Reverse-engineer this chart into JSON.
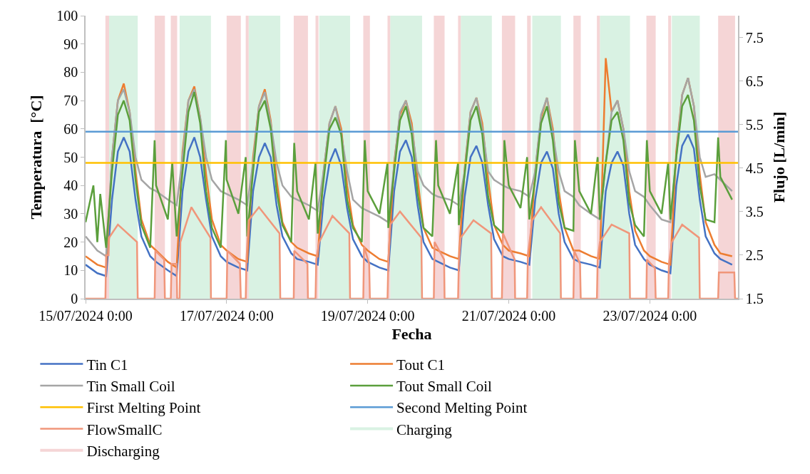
{
  "chart_data": {
    "type": "line",
    "xlabel": "Fecha",
    "ylabel": "Temperatura  [°C]",
    "y2label": "Flujo [L/min]",
    "xlim": [
      "2024-07-15T00:00",
      "2024-07-24T06:00"
    ],
    "xticks": [
      {
        "value": "2024-07-15T00:00",
        "label": "15/07/2024 0:00"
      },
      {
        "value": "2024-07-17T00:00",
        "label": "17/07/2024 0:00"
      },
      {
        "value": "2024-07-19T00:00",
        "label": "19/07/2024 0:00"
      },
      {
        "value": "2024-07-21T00:00",
        "label": "21/07/2024 0:00"
      },
      {
        "value": "2024-07-23T00:00",
        "label": "23/07/2024 0:00"
      }
    ],
    "ylim": [
      0,
      100
    ],
    "yticks": [
      0,
      10,
      20,
      30,
      40,
      50,
      60,
      70,
      80,
      90,
      100
    ],
    "y2lim": [
      1.5,
      8
    ],
    "y2ticks": [
      1.5,
      2.5,
      3.5,
      4.5,
      5.5,
      6.5,
      7.5
    ],
    "legend": "bottom",
    "x": [
      "2024-07-15T00:00",
      "2024-07-15T04:00",
      "2024-07-15T07:00",
      "2024-07-15T09:00",
      "2024-07-15T11:00",
      "2024-07-15T13:00",
      "2024-07-15T15:00",
      "2024-07-15T17:00",
      "2024-07-15T19:00",
      "2024-07-15T22:00",
      "2024-07-16T00:00",
      "2024-07-16T04:00",
      "2024-07-16T07:00",
      "2024-07-16T09:00",
      "2024-07-16T11:00",
      "2024-07-16T13:00",
      "2024-07-16T15:00",
      "2024-07-16T17:00",
      "2024-07-16T19:00",
      "2024-07-16T22:00",
      "2024-07-17T00:00",
      "2024-07-17T04:00",
      "2024-07-17T07:00",
      "2024-07-17T09:00",
      "2024-07-17T11:00",
      "2024-07-17T13:00",
      "2024-07-17T15:00",
      "2024-07-17T17:00",
      "2024-07-17T19:00",
      "2024-07-17T22:00",
      "2024-07-18T00:00",
      "2024-07-18T04:00",
      "2024-07-18T07:00",
      "2024-07-18T09:00",
      "2024-07-18T11:00",
      "2024-07-18T13:00",
      "2024-07-18T15:00",
      "2024-07-18T17:00",
      "2024-07-18T19:00",
      "2024-07-18T22:00",
      "2024-07-19T00:00",
      "2024-07-19T04:00",
      "2024-07-19T07:00",
      "2024-07-19T09:00",
      "2024-07-19T11:00",
      "2024-07-19T13:00",
      "2024-07-19T15:00",
      "2024-07-19T17:00",
      "2024-07-19T19:00",
      "2024-07-19T22:00",
      "2024-07-20T00:00",
      "2024-07-20T04:00",
      "2024-07-20T07:00",
      "2024-07-20T09:00",
      "2024-07-20T11:00",
      "2024-07-20T13:00",
      "2024-07-20T15:00",
      "2024-07-20T17:00",
      "2024-07-20T19:00",
      "2024-07-20T22:00",
      "2024-07-21T00:00",
      "2024-07-21T04:00",
      "2024-07-21T07:00",
      "2024-07-21T09:00",
      "2024-07-21T11:00",
      "2024-07-21T13:00",
      "2024-07-21T15:00",
      "2024-07-21T17:00",
      "2024-07-21T19:00",
      "2024-07-21T22:00",
      "2024-07-22T00:00",
      "2024-07-22T04:00",
      "2024-07-22T07:00",
      "2024-07-22T09:00",
      "2024-07-22T11:00",
      "2024-07-22T13:00",
      "2024-07-22T15:00",
      "2024-07-22T17:00",
      "2024-07-22T19:00",
      "2024-07-22T22:00",
      "2024-07-23T00:00",
      "2024-07-23T04:00",
      "2024-07-23T07:00",
      "2024-07-23T09:00",
      "2024-07-23T11:00",
      "2024-07-23T13:00",
      "2024-07-23T15:00",
      "2024-07-23T17:00",
      "2024-07-23T19:00",
      "2024-07-23T22:00",
      "2024-07-24T00:00",
      "2024-07-24T04:00"
    ],
    "series": [
      {
        "name": "Tin C1",
        "color": "#4472c4",
        "values": [
          12,
          9,
          8,
          35,
          52,
          57,
          52,
          35,
          22,
          15,
          13,
          10,
          8,
          38,
          52,
          57,
          50,
          35,
          22,
          15,
          13,
          11,
          10,
          38,
          50,
          55,
          50,
          33,
          22,
          16,
          14,
          13,
          12,
          35,
          48,
          53,
          47,
          32,
          21,
          15,
          13,
          11,
          10,
          38,
          52,
          56,
          50,
          33,
          20,
          14,
          13,
          11,
          10,
          36,
          50,
          54,
          48,
          33,
          21,
          15,
          14,
          13,
          12,
          35,
          48,
          52,
          46,
          30,
          20,
          14,
          13,
          12,
          11,
          38,
          48,
          52,
          47,
          30,
          19,
          14,
          12,
          10,
          9,
          40,
          54,
          58,
          53,
          35,
          22,
          16,
          14,
          12
        ]
      },
      {
        "name": "Tout C1",
        "color": "#ed7d31",
        "values": [
          15,
          12,
          11,
          50,
          70,
          76,
          66,
          45,
          28,
          19,
          17,
          13,
          11,
          52,
          70,
          75,
          64,
          44,
          28,
          19,
          17,
          14,
          13,
          50,
          68,
          74,
          63,
          42,
          27,
          20,
          18,
          16,
          15,
          45,
          62,
          68,
          60,
          40,
          26,
          19,
          17,
          14,
          13,
          48,
          65,
          70,
          62,
          42,
          25,
          18,
          17,
          15,
          14,
          46,
          66,
          71,
          62,
          42,
          26,
          19,
          17,
          16,
          15,
          45,
          64,
          71,
          60,
          38,
          25,
          17,
          17,
          15,
          14,
          85,
          66,
          70,
          60,
          38,
          24,
          17,
          15,
          13,
          12,
          52,
          72,
          78,
          68,
          44,
          27,
          19,
          16,
          15
        ]
      },
      {
        "name": "Tin Small Coil",
        "color": "#a5a5a5",
        "values": [
          22,
          17,
          15,
          50,
          70,
          74,
          66,
          50,
          42,
          39,
          38,
          35,
          33,
          50,
          70,
          74,
          64,
          50,
          42,
          38,
          37,
          35,
          33,
          48,
          68,
          73,
          62,
          48,
          40,
          36,
          35,
          33,
          31,
          45,
          62,
          68,
          58,
          45,
          35,
          32,
          31,
          29,
          27,
          47,
          66,
          70,
          60,
          45,
          40,
          37,
          36,
          35,
          33,
          45,
          66,
          71,
          60,
          45,
          42,
          40,
          39,
          38,
          36,
          45,
          65,
          71,
          58,
          45,
          38,
          36,
          33,
          30,
          28,
          48,
          66,
          70,
          60,
          45,
          38,
          36,
          33,
          28,
          27,
          50,
          72,
          78,
          68,
          50,
          43,
          44,
          42,
          38
        ]
      },
      {
        "name": "Tout Small Coil",
        "color": "#5b9f3c",
        "x": [
          "2024-07-15T00:00",
          "2024-07-15T02:40",
          "2024-07-15T04:00",
          "2024-07-15T05:00",
          "2024-07-15T07:00",
          "2024-07-15T09:00",
          "2024-07-15T11:00",
          "2024-07-15T13:00",
          "2024-07-15T15:00",
          "2024-07-15T17:00",
          "2024-07-15T19:00",
          "2024-07-15T22:00",
          "2024-07-15T23:30",
          "2024-07-16T00:00",
          "2024-07-16T04:00",
          "2024-07-16T05:30",
          "2024-07-16T07:00",
          "2024-07-16T09:00",
          "2024-07-16T11:00",
          "2024-07-16T13:00",
          "2024-07-16T15:00",
          "2024-07-16T17:00",
          "2024-07-16T19:00",
          "2024-07-16T22:00",
          "2024-07-16T23:45",
          "2024-07-17T00:00",
          "2024-07-17T04:00",
          "2024-07-17T06:30",
          "2024-07-17T07:00",
          "2024-07-17T09:00",
          "2024-07-17T11:00",
          "2024-07-17T13:00",
          "2024-07-17T15:00",
          "2024-07-17T17:00",
          "2024-07-17T19:00",
          "2024-07-17T22:00",
          "2024-07-17T23:00",
          "2024-07-18T00:00",
          "2024-07-18T04:00",
          "2024-07-18T06:15",
          "2024-07-18T07:00",
          "2024-07-18T09:00",
          "2024-07-18T11:00",
          "2024-07-18T13:00",
          "2024-07-18T15:00",
          "2024-07-18T17:00",
          "2024-07-18T19:00",
          "2024-07-18T22:00",
          "2024-07-18T23:00",
          "2024-07-19T00:00",
          "2024-07-19T04:00",
          "2024-07-19T06:45",
          "2024-07-19T07:00",
          "2024-07-19T09:00",
          "2024-07-19T11:00",
          "2024-07-19T13:00",
          "2024-07-19T15:00",
          "2024-07-19T17:00",
          "2024-07-19T19:00",
          "2024-07-19T22:00",
          "2024-07-19T23:15",
          "2024-07-20T00:00",
          "2024-07-20T04:00",
          "2024-07-20T06:45",
          "2024-07-20T07:00",
          "2024-07-20T09:00",
          "2024-07-20T11:00",
          "2024-07-20T13:00",
          "2024-07-20T15:00",
          "2024-07-20T17:00",
          "2024-07-20T19:00",
          "2024-07-20T22:00",
          "2024-07-20T22:30",
          "2024-07-21T00:00",
          "2024-07-21T04:00",
          "2024-07-21T06:15",
          "2024-07-21T07:00",
          "2024-07-21T09:00",
          "2024-07-21T11:00",
          "2024-07-21T13:00",
          "2024-07-21T15:00",
          "2024-07-21T17:00",
          "2024-07-21T19:00",
          "2024-07-21T22:00",
          "2024-07-21T22:30",
          "2024-07-22T00:00",
          "2024-07-22T04:00",
          "2024-07-22T06:15",
          "2024-07-22T07:00",
          "2024-07-22T09:00",
          "2024-07-22T11:00",
          "2024-07-22T13:00",
          "2024-07-22T15:00",
          "2024-07-22T17:00",
          "2024-07-22T19:00",
          "2024-07-22T22:00",
          "2024-07-22T23:00",
          "2024-07-23T00:00",
          "2024-07-23T04:00",
          "2024-07-23T06:15",
          "2024-07-23T07:00",
          "2024-07-23T09:00",
          "2024-07-23T11:00",
          "2024-07-23T13:00",
          "2024-07-23T15:00",
          "2024-07-23T17:00",
          "2024-07-23T19:00",
          "2024-07-23T22:00",
          "2024-07-23T23:15",
          "2024-07-24T00:00",
          "2024-07-24T04:00"
        ],
        "values": [
          27,
          40,
          20,
          37,
          18,
          45,
          65,
          70,
          63,
          42,
          26,
          18,
          56,
          40,
          28,
          48,
          22,
          45,
          66,
          73,
          62,
          38,
          25,
          18,
          56,
          42,
          30,
          50,
          22,
          45,
          66,
          70,
          60,
          38,
          26,
          20,
          55,
          38,
          28,
          48,
          23,
          42,
          60,
          64,
          58,
          35,
          25,
          20,
          56,
          38,
          30,
          48,
          25,
          45,
          63,
          68,
          58,
          37,
          25,
          22,
          56,
          40,
          30,
          48,
          26,
          44,
          63,
          68,
          58,
          36,
          26,
          23,
          56,
          40,
          32,
          50,
          28,
          42,
          62,
          68,
          56,
          34,
          25,
          24,
          56,
          38,
          30,
          50,
          28,
          48,
          63,
          66,
          56,
          34,
          26,
          22,
          56,
          38,
          30,
          48,
          28,
          50,
          68,
          72,
          63,
          40,
          28,
          27,
          57,
          43,
          35
        ]
      },
      {
        "name": "First Melting Point",
        "color": "#ffc000",
        "x": [
          "2024-07-15T00:00",
          "2024-07-24T06:00"
        ],
        "values": [
          48,
          48
        ]
      },
      {
        "name": "Second Melting Point",
        "color": "#5b9bd5",
        "x": [
          "2024-07-15T00:00",
          "2024-07-24T06:00"
        ],
        "values": [
          59,
          59
        ]
      },
      {
        "name": "FlowSmallC",
        "color": "#f0967a",
        "axis": "y2",
        "x": [
          "2024-07-15T00:00",
          "2024-07-15T06:45",
          "2024-07-15T07:00",
          "2024-07-15T07:50",
          "2024-07-15T08:00",
          "2024-07-15T11:00",
          "2024-07-15T17:30",
          "2024-07-15T17:45",
          "2024-07-15T23:30",
          "2024-07-15T23:45",
          "2024-07-16T02:45",
          "2024-07-16T03:00",
          "2024-07-16T05:00",
          "2024-07-16T05:15",
          "2024-07-16T07:00",
          "2024-07-16T07:10",
          "2024-07-16T08:00",
          "2024-07-16T08:15",
          "2024-07-16T12:00",
          "2024-07-16T18:30",
          "2024-07-16T18:40",
          "2024-07-17T00:00",
          "2024-07-17T00:15",
          "2024-07-17T04:30",
          "2024-07-17T04:50",
          "2024-07-17T06:30",
          "2024-07-17T06:45",
          "2024-07-17T07:30",
          "2024-07-17T11:00",
          "2024-07-17T18:00",
          "2024-07-17T18:15",
          "2024-07-17T22:50",
          "2024-07-17T23:00",
          "2024-07-18T03:30",
          "2024-07-18T03:40",
          "2024-07-18T06:15",
          "2024-07-18T06:30",
          "2024-07-18T07:30",
          "2024-07-18T12:00",
          "2024-07-18T17:45",
          "2024-07-18T18:00",
          "2024-07-18T22:30",
          "2024-07-18T22:45",
          "2024-07-19T00:30",
          "2024-07-19T00:45",
          "2024-07-19T06:45",
          "2024-07-19T07:00",
          "2024-07-19T07:40",
          "2024-07-19T11:00",
          "2024-07-19T18:15",
          "2024-07-19T18:30",
          "2024-07-19T22:30",
          "2024-07-19T22:45",
          "2024-07-20T02:00",
          "2024-07-20T02:10",
          "2024-07-20T06:45",
          "2024-07-20T07:00",
          "2024-07-20T07:40",
          "2024-07-20T12:00",
          "2024-07-20T18:00",
          "2024-07-20T18:15",
          "2024-07-20T21:40",
          "2024-07-20T22:00",
          "2024-07-21T02:00",
          "2024-07-21T02:10",
          "2024-07-21T06:15",
          "2024-07-21T06:30",
          "2024-07-21T08:00",
          "2024-07-21T11:00",
          "2024-07-21T17:30",
          "2024-07-21T17:45",
          "2024-07-21T22:00",
          "2024-07-21T22:15",
          "2024-07-22T00:15",
          "2024-07-22T00:30",
          "2024-07-22T06:00",
          "2024-07-22T06:15",
          "2024-07-22T07:00",
          "2024-07-22T11:00",
          "2024-07-22T17:00",
          "2024-07-22T17:15",
          "2024-07-22T22:50",
          "2024-07-22T23:00",
          "2024-07-23T01:45",
          "2024-07-23T02:00",
          "2024-07-23T06:15",
          "2024-07-23T06:30",
          "2024-07-23T07:30",
          "2024-07-23T11:00",
          "2024-07-23T16:45",
          "2024-07-23T17:00",
          "2024-07-23T23:15",
          "2024-07-23T23:30",
          "2024-07-24T04:45",
          "2024-07-24T05:00",
          "2024-07-24T06:00"
        ],
        "values": [
          1.5,
          1.5,
          2.5,
          2.5,
          2.9,
          3.2,
          2.8,
          1.5,
          1.5,
          2.6,
          2.4,
          1.5,
          1.5,
          2.3,
          2.3,
          1.5,
          1.5,
          2.8,
          3.6,
          2.9,
          1.5,
          1.5,
          2.6,
          2.3,
          1.5,
          1.5,
          2.4,
          3.3,
          3.6,
          3.0,
          1.5,
          1.5,
          2.6,
          2.3,
          1.5,
          1.5,
          2.4,
          2.8,
          3.4,
          3.0,
          1.5,
          1.5,
          2.7,
          2.3,
          1.5,
          1.5,
          2.3,
          3.2,
          3.5,
          2.9,
          1.5,
          1.5,
          2.8,
          2.4,
          1.5,
          1.5,
          2.3,
          2.9,
          3.3,
          3.0,
          1.5,
          1.5,
          3.0,
          2.4,
          1.5,
          1.5,
          2.5,
          3.3,
          3.6,
          3.0,
          1.5,
          1.5,
          2.6,
          2.3,
          1.5,
          1.5,
          2.4,
          2.8,
          3.2,
          3.0,
          1.5,
          1.5,
          2.4,
          2.2,
          1.5,
          1.5,
          2.3,
          2.8,
          3.2,
          2.9,
          1.5,
          1.5,
          2.1,
          2.1,
          1.5,
          1.5
        ]
      }
    ],
    "bands": [
      {
        "axis": "x",
        "from": "2024-07-15T08:00",
        "to": "2024-07-15T17:45",
        "label": "Charging",
        "color": "#d9f2e3"
      },
      {
        "axis": "x",
        "from": "2024-07-16T08:00",
        "to": "2024-07-16T18:40",
        "color": "#d9f2e3"
      },
      {
        "axis": "x",
        "from": "2024-07-17T07:30",
        "to": "2024-07-17T18:15",
        "color": "#d9f2e3"
      },
      {
        "axis": "x",
        "from": "2024-07-18T07:30",
        "to": "2024-07-18T18:00",
        "color": "#d9f2e3"
      },
      {
        "axis": "x",
        "from": "2024-07-19T07:40",
        "to": "2024-07-19T18:30",
        "color": "#d9f2e3"
      },
      {
        "axis": "x",
        "from": "2024-07-20T07:40",
        "to": "2024-07-20T18:15",
        "color": "#d9f2e3"
      },
      {
        "axis": "x",
        "from": "2024-07-21T08:00",
        "to": "2024-07-21T17:45",
        "color": "#d9f2e3"
      },
      {
        "axis": "x",
        "from": "2024-07-22T07:00",
        "to": "2024-07-22T17:15",
        "color": "#d9f2e3"
      },
      {
        "axis": "x",
        "from": "2024-07-23T07:30",
        "to": "2024-07-23T17:00",
        "color": "#d9f2e3"
      },
      {
        "axis": "x",
        "from": "2024-07-15T06:45",
        "to": "2024-07-15T08:00",
        "label": "Discharging",
        "color": "#f5d5d6"
      },
      {
        "axis": "x",
        "from": "2024-07-15T23:30",
        "to": "2024-07-16T03:00",
        "color": "#f5d5d6"
      },
      {
        "axis": "x",
        "from": "2024-07-16T05:00",
        "to": "2024-07-16T07:10",
        "color": "#f5d5d6"
      },
      {
        "axis": "x",
        "from": "2024-07-17T00:00",
        "to": "2024-07-17T04:50",
        "color": "#f5d5d6"
      },
      {
        "axis": "x",
        "from": "2024-07-17T06:30",
        "to": "2024-07-17T07:30",
        "color": "#f5d5d6"
      },
      {
        "axis": "x",
        "from": "2024-07-17T22:50",
        "to": "2024-07-18T03:40",
        "color": "#f5d5d6"
      },
      {
        "axis": "x",
        "from": "2024-07-18T06:15",
        "to": "2024-07-18T07:15",
        "color": "#f5d5d6"
      },
      {
        "axis": "x",
        "from": "2024-07-18T22:30",
        "to": "2024-07-19T00:45",
        "color": "#f5d5d6"
      },
      {
        "axis": "x",
        "from": "2024-07-19T06:45",
        "to": "2024-07-19T07:40",
        "color": "#f5d5d6"
      },
      {
        "axis": "x",
        "from": "2024-07-19T22:30",
        "to": "2024-07-20T02:10",
        "color": "#f5d5d6"
      },
      {
        "axis": "x",
        "from": "2024-07-20T06:45",
        "to": "2024-07-20T07:40",
        "color": "#f5d5d6"
      },
      {
        "axis": "x",
        "from": "2024-07-20T21:40",
        "to": "2024-07-21T02:10",
        "color": "#f5d5d6"
      },
      {
        "axis": "x",
        "from": "2024-07-21T06:15",
        "to": "2024-07-21T07:30",
        "color": "#f5d5d6"
      },
      {
        "axis": "x",
        "from": "2024-07-21T22:00",
        "to": "2024-07-22T00:30",
        "color": "#f5d5d6"
      },
      {
        "axis": "x",
        "from": "2024-07-22T06:00",
        "to": "2024-07-22T07:00",
        "color": "#f5d5d6"
      },
      {
        "axis": "x",
        "from": "2024-07-22T22:50",
        "to": "2024-07-23T02:00",
        "color": "#f5d5d6"
      },
      {
        "axis": "x",
        "from": "2024-07-23T06:15",
        "to": "2024-07-23T07:15",
        "color": "#f5d5d6"
      },
      {
        "axis": "x",
        "from": "2024-07-23T23:15",
        "to": "2024-07-24T05:00",
        "color": "#f5d5d6"
      }
    ]
  }
}
